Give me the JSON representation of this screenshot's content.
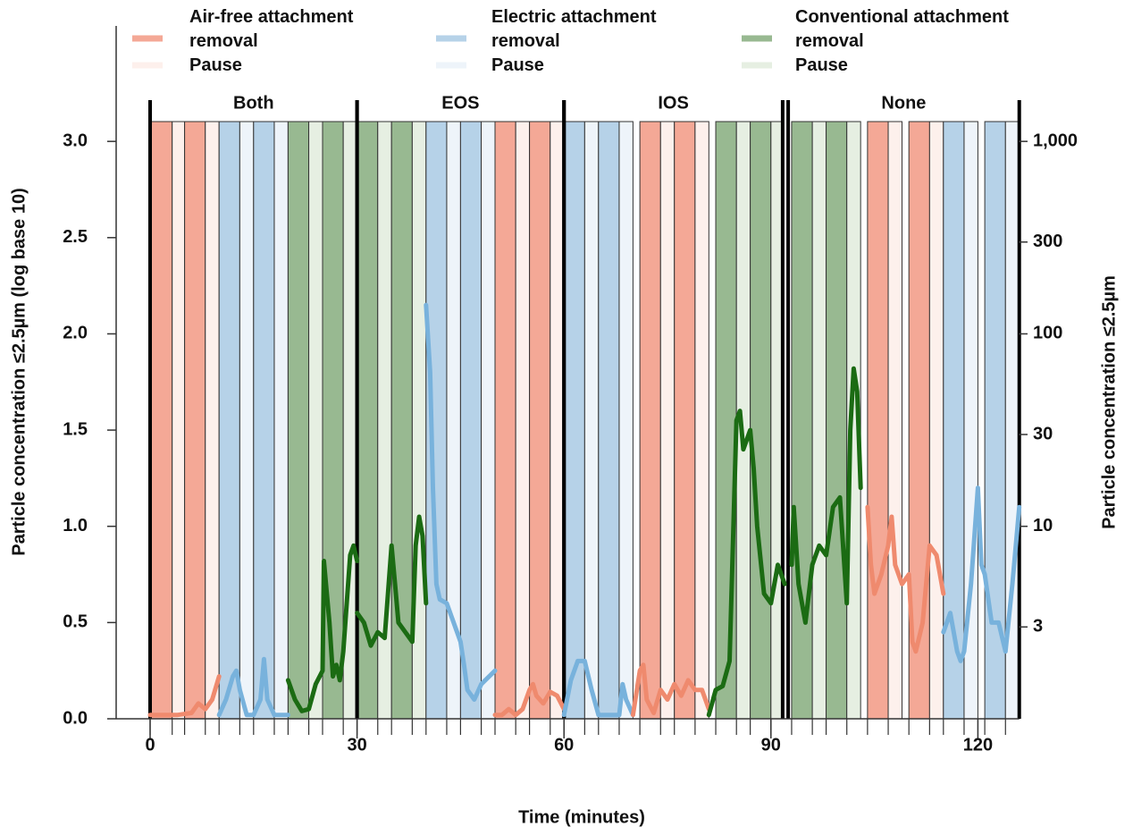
{
  "chart_data": {
    "type": "line",
    "xlabel": "Time (minutes)",
    "ylabel": "Particle concentration ≤2.5µm (log base 10)",
    "y2label": "Particle concentration ≤2.5µm",
    "xlim": [
      -5,
      126
    ],
    "ylim": [
      0,
      3.6
    ],
    "y2lim": [
      1,
      3981.07
    ],
    "y2_log": true,
    "xticks": [
      0,
      30,
      60,
      90,
      120
    ],
    "yticks": [
      {
        "value": 0,
        "label": "0.0"
      },
      0.5,
      {
        "value": 1,
        "label": "1.0"
      },
      1.5,
      {
        "value": 2,
        "label": "2.0"
      },
      2.5,
      {
        "value": 3,
        "label": "3.0"
      }
    ],
    "y2ticks": [
      {
        "value": 1000,
        "label": "1,000"
      },
      300,
      100,
      30,
      10,
      3
    ],
    "legend": [
      {
        "name": "Air-free attachment removal",
        "color": "#f4a896"
      },
      {
        "name": "Pause",
        "color": "#fdf0ec"
      },
      {
        "name": "Electric attachment removal",
        "color": "#b6d2e8"
      },
      {
        "name": "Pause",
        "color": "#eef4fa"
      },
      {
        "name": "Conventional attachment removal",
        "color": "#98b991"
      },
      {
        "name": "Pause",
        "color": "#e6efe2"
      }
    ],
    "blocks": [
      {
        "label": "Both",
        "start": 0,
        "end": 30
      },
      {
        "label": "EOS",
        "start": 30,
        "end": 60
      },
      {
        "label": "IOS",
        "start": 60,
        "end": 91.7
      },
      {
        "label": "None",
        "start": 92.5,
        "end": 126
      }
    ],
    "bands": [
      [
        0,
        3.2,
        0
      ],
      [
        3.2,
        5,
        1
      ],
      [
        5,
        8,
        0
      ],
      [
        8,
        10,
        1
      ],
      [
        10,
        13,
        2
      ],
      [
        13,
        15,
        3
      ],
      [
        15,
        18,
        2
      ],
      [
        18,
        20,
        3
      ],
      [
        20,
        23,
        4
      ],
      [
        23,
        25,
        5
      ],
      [
        25,
        28,
        4
      ],
      [
        28,
        30,
        5
      ],
      [
        30,
        33,
        4
      ],
      [
        33,
        35,
        5
      ],
      [
        35,
        38,
        4
      ],
      [
        38,
        40,
        5
      ],
      [
        40,
        43,
        2
      ],
      [
        43,
        45,
        3
      ],
      [
        45,
        48,
        2
      ],
      [
        48,
        50,
        3
      ],
      [
        50,
        53,
        0
      ],
      [
        53,
        55,
        1
      ],
      [
        55,
        58,
        0
      ],
      [
        58,
        60,
        1
      ],
      [
        60,
        63,
        2
      ],
      [
        63,
        65,
        3
      ],
      [
        65,
        68,
        2
      ],
      [
        68,
        70,
        3
      ],
      [
        71,
        74,
        0
      ],
      [
        74,
        76,
        1
      ],
      [
        76,
        79,
        0
      ],
      [
        79,
        81,
        1
      ],
      [
        82,
        85,
        4
      ],
      [
        85,
        87,
        5
      ],
      [
        87,
        90,
        4
      ],
      [
        90,
        91.7,
        5
      ],
      [
        93,
        96,
        4
      ],
      [
        96,
        98,
        5
      ],
      [
        98,
        101,
        4
      ],
      [
        101,
        103,
        5
      ],
      [
        104,
        107,
        0
      ],
      [
        107,
        109,
        1
      ],
      [
        110,
        113,
        0
      ],
      [
        113,
        115,
        1
      ],
      [
        115,
        118,
        2
      ],
      [
        118,
        120,
        3
      ],
      [
        121,
        124,
        2
      ],
      [
        124,
        126,
        3
      ]
    ],
    "series": [
      {
        "color": "#ef8a6e",
        "x": [
          0,
          2,
          4,
          6,
          7,
          8,
          9,
          10
        ],
        "values": [
          0.02,
          0.02,
          0.02,
          0.03,
          0.08,
          0.05,
          0.1,
          0.22
        ]
      },
      {
        "color": "#78b2dc",
        "x": [
          10,
          11,
          12,
          12.5,
          13,
          14,
          15,
          16,
          16.5,
          17,
          18,
          20
        ],
        "values": [
          0.02,
          0.1,
          0.22,
          0.25,
          0.15,
          0.02,
          0.02,
          0.1,
          0.31,
          0.1,
          0.02,
          0.02
        ]
      },
      {
        "color": "#1b6b13",
        "x": [
          20,
          21,
          22,
          23,
          24,
          25,
          25.2,
          26,
          26.5,
          27,
          27.5,
          28,
          29,
          29.5,
          30
        ],
        "values": [
          0.2,
          0.1,
          0.04,
          0.05,
          0.18,
          0.25,
          0.82,
          0.5,
          0.22,
          0.28,
          0.2,
          0.35,
          0.85,
          0.9,
          0.82
        ]
      },
      {
        "color": "#1b6b13",
        "x": [
          30,
          31,
          32,
          33,
          34,
          35,
          35.5,
          36,
          37,
          38,
          38.5,
          39,
          39.5,
          40
        ],
        "values": [
          0.55,
          0.5,
          0.38,
          0.45,
          0.42,
          0.9,
          0.7,
          0.5,
          0.45,
          0.4,
          0.9,
          1.05,
          0.95,
          0.6
        ]
      },
      {
        "color": "#78b2dc",
        "x": [
          40,
          40.6,
          41,
          41.5,
          42,
          43,
          44,
          45,
          45.5,
          46,
          47,
          48,
          50
        ],
        "values": [
          2.15,
          1.8,
          1.2,
          0.7,
          0.62,
          0.6,
          0.5,
          0.4,
          0.28,
          0.15,
          0.1,
          0.18,
          0.25
        ]
      },
      {
        "color": "#ef8a6e",
        "x": [
          50,
          51,
          52,
          53,
          54,
          55,
          55.5,
          56,
          57,
          58,
          59,
          60
        ],
        "values": [
          0.02,
          0.02,
          0.05,
          0.02,
          0.05,
          0.15,
          0.18,
          0.12,
          0.08,
          0.14,
          0.12,
          0.05
        ]
      },
      {
        "color": "#78b2dc",
        "x": [
          60,
          61,
          62,
          63,
          64,
          65,
          66,
          67,
          68,
          68.5,
          69,
          70
        ],
        "values": [
          0.02,
          0.2,
          0.3,
          0.3,
          0.15,
          0.02,
          0.02,
          0.02,
          0.02,
          0.18,
          0.1,
          0.02
        ]
      },
      {
        "color": "#ef8a6e",
        "x": [
          70,
          71,
          71.5,
          72,
          73,
          74,
          75,
          76,
          77,
          78,
          79,
          80,
          81
        ],
        "values": [
          0.02,
          0.25,
          0.28,
          0.1,
          0.03,
          0.15,
          0.1,
          0.18,
          0.12,
          0.2,
          0.15,
          0.15,
          0.05
        ]
      },
      {
        "color": "#1b6b13",
        "x": [
          81,
          82,
          83,
          84,
          85,
          85.5,
          86,
          87,
          87.5,
          88,
          89,
          90,
          91,
          92
        ],
        "values": [
          0.02,
          0.15,
          0.17,
          0.3,
          1.55,
          1.6,
          1.4,
          1.5,
          1.3,
          1.0,
          0.65,
          0.6,
          0.8,
          0.7
        ]
      },
      {
        "color": "#1b6b13",
        "x": [
          93,
          93.3,
          94,
          95,
          96,
          97,
          98,
          99,
          100,
          101,
          101.5,
          102,
          102.5,
          103
        ],
        "values": [
          0.8,
          1.1,
          0.7,
          0.5,
          0.8,
          0.9,
          0.85,
          1.1,
          1.15,
          0.6,
          1.5,
          1.82,
          1.7,
          1.2
        ]
      },
      {
        "color": "#ef8a6e",
        "x": [
          104,
          104.5,
          105,
          106,
          107,
          107.5,
          108,
          109,
          110,
          110.5,
          111,
          112,
          113,
          114,
          115
        ],
        "values": [
          1.1,
          0.8,
          0.65,
          0.75,
          0.9,
          1.05,
          0.8,
          0.7,
          0.75,
          0.4,
          0.35,
          0.5,
          0.9,
          0.85,
          0.65
        ]
      },
      {
        "color": "#78b2dc",
        "x": [
          115,
          116,
          117,
          117.5,
          118,
          119,
          120,
          120.5,
          121,
          122,
          123,
          124,
          125,
          126
        ],
        "values": [
          0.45,
          0.55,
          0.35,
          0.3,
          0.35,
          0.7,
          1.2,
          0.8,
          0.75,
          0.5,
          0.5,
          0.35,
          0.7,
          1.1
        ]
      }
    ]
  }
}
